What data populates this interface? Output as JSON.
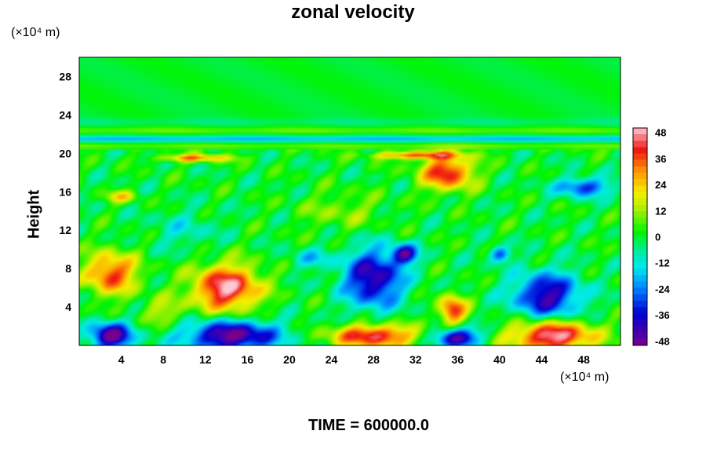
{
  "chart_data": {
    "type": "heatmap",
    "title": "zonal velocity",
    "ylabel": "Height",
    "xlabel": "",
    "x_unit": "(×10⁴ m)",
    "y_unit": "(×10⁴ m)",
    "footer": "TIME = 600000.0",
    "xlim": [
      0,
      51.5
    ],
    "ylim": [
      0,
      30
    ],
    "x_ticks": [
      "4",
      "8",
      "12",
      "16",
      "20",
      "24",
      "28",
      "32",
      "36",
      "40",
      "44",
      "48"
    ],
    "y_ticks": [
      "4",
      "8",
      "12",
      "16",
      "20",
      "24",
      "28"
    ],
    "colorbar": {
      "range": [
        -50,
        50
      ],
      "ticks": [
        "48",
        "36",
        "24",
        "12",
        "0",
        "-12",
        "-24",
        "-36",
        "-48"
      ]
    },
    "features": [
      {
        "x": 14.5,
        "y": 1.0,
        "rx": 4.5,
        "ry": 1.6,
        "value": -50
      },
      {
        "x": 3.0,
        "y": 1.0,
        "rx": 2.0,
        "ry": 1.4,
        "value": -50
      },
      {
        "x": 36.0,
        "y": 0.8,
        "rx": 2.0,
        "ry": 1.0,
        "value": -50
      },
      {
        "x": 28.0,
        "y": 1.0,
        "rx": 4.0,
        "ry": 1.2,
        "value": 45
      },
      {
        "x": 45.0,
        "y": 1.0,
        "rx": 4.0,
        "ry": 1.6,
        "value": 50
      },
      {
        "x": 14.0,
        "y": 6.0,
        "rx": 3.2,
        "ry": 2.4,
        "value": 48
      },
      {
        "x": 3.0,
        "y": 7.5,
        "rx": 2.5,
        "ry": 2.2,
        "value": 38
      },
      {
        "x": 35.5,
        "y": 3.7,
        "rx": 1.3,
        "ry": 1.5,
        "value": 40
      },
      {
        "x": 28.0,
        "y": 7.0,
        "rx": 2.8,
        "ry": 3.0,
        "value": -44
      },
      {
        "x": 44.5,
        "y": 5.2,
        "rx": 3.2,
        "ry": 2.4,
        "value": -42
      },
      {
        "x": 31.0,
        "y": 9.5,
        "rx": 1.2,
        "ry": 1.0,
        "value": -40
      },
      {
        "x": 35.0,
        "y": 18.0,
        "rx": 2.5,
        "ry": 1.8,
        "value": 42
      },
      {
        "x": 32.0,
        "y": 19.8,
        "rx": 4.0,
        "ry": 0.4,
        "value": 35
      },
      {
        "x": 11.0,
        "y": 19.5,
        "rx": 3.5,
        "ry": 0.4,
        "value": 30
      },
      {
        "x": 48.0,
        "y": 16.5,
        "rx": 2.5,
        "ry": 1.0,
        "value": -32
      },
      {
        "x": 4.0,
        "y": 15.5,
        "rx": 1.5,
        "ry": 0.6,
        "value": 20
      },
      {
        "x": 22.0,
        "y": 9.0,
        "rx": 2.0,
        "ry": 1.0,
        "value": -15
      },
      {
        "x": 8.0,
        "y": 3.5,
        "rx": 2.0,
        "ry": 1.5,
        "value": 15
      },
      {
        "x": 40.0,
        "y": 9.5,
        "rx": 1.0,
        "ry": 0.8,
        "value": -30
      },
      {
        "x": 25.0,
        "y": 14.0,
        "rx": 4.0,
        "ry": 2.0,
        "value": 10
      },
      {
        "x": 10.0,
        "y": 12.0,
        "rx": 3.0,
        "ry": 2.0,
        "value": -10
      }
    ],
    "bands": [
      {
        "y": 20.8,
        "width": 0.35,
        "value": 8
      },
      {
        "y": 21.5,
        "width": 0.35,
        "value": -18
      },
      {
        "y": 22.4,
        "width": 0.4,
        "value": 8
      },
      {
        "y": 23.2,
        "width": 0.5,
        "value": -4
      }
    ]
  }
}
